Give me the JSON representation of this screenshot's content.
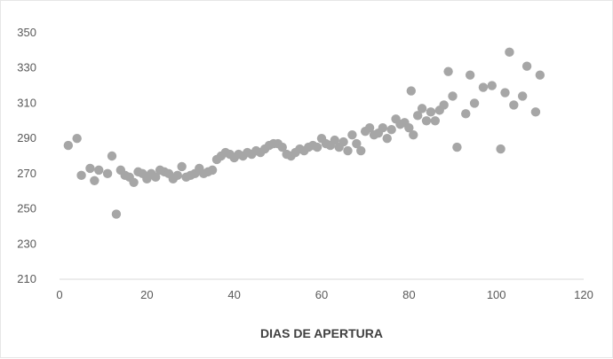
{
  "chart_data": {
    "type": "scatter",
    "title": "",
    "xlabel": "DIAS DE APERTURA",
    "ylabel": "",
    "xlim": [
      0,
      120
    ],
    "ylim": [
      210,
      350
    ],
    "xticks": [
      0,
      20,
      40,
      60,
      80,
      100,
      120
    ],
    "yticks": [
      210,
      230,
      250,
      270,
      290,
      310,
      330,
      350
    ],
    "grid": false,
    "legend": "none",
    "marker_color": "#a6a6a6",
    "series": [
      {
        "points": [
          [
            2,
            286
          ],
          [
            4,
            290
          ],
          [
            5,
            269
          ],
          [
            7,
            273
          ],
          [
            8,
            266
          ],
          [
            9,
            272
          ],
          [
            11,
            270
          ],
          [
            12,
            280
          ],
          [
            13,
            247
          ],
          [
            14,
            272
          ],
          [
            15,
            269
          ],
          [
            16,
            268
          ],
          [
            17,
            265
          ],
          [
            18,
            271
          ],
          [
            19,
            270
          ],
          [
            20,
            267
          ],
          [
            21,
            270
          ],
          [
            22,
            268
          ],
          [
            23,
            272
          ],
          [
            24,
            271
          ],
          [
            25,
            270
          ],
          [
            26,
            267
          ],
          [
            27,
            269
          ],
          [
            28,
            274
          ],
          [
            29,
            268
          ],
          [
            30,
            269
          ],
          [
            31,
            270
          ],
          [
            32,
            273
          ],
          [
            33,
            270
          ],
          [
            34,
            271
          ],
          [
            35,
            272
          ],
          [
            36,
            278
          ],
          [
            37,
            280
          ],
          [
            38,
            282
          ],
          [
            39,
            281
          ],
          [
            40,
            279
          ],
          [
            41,
            281
          ],
          [
            42,
            280
          ],
          [
            43,
            282
          ],
          [
            44,
            281
          ],
          [
            45,
            283
          ],
          [
            46,
            282
          ],
          [
            47,
            284
          ],
          [
            48,
            286
          ],
          [
            49,
            287
          ],
          [
            50,
            287
          ],
          [
            51,
            285
          ],
          [
            52,
            281
          ],
          [
            53,
            280
          ],
          [
            54,
            282
          ],
          [
            55,
            284
          ],
          [
            56,
            283
          ],
          [
            57,
            285
          ],
          [
            58,
            286
          ],
          [
            59,
            285
          ],
          [
            60,
            290
          ],
          [
            61,
            287
          ],
          [
            62,
            286
          ],
          [
            63,
            289
          ],
          [
            64,
            285
          ],
          [
            65,
            288
          ],
          [
            66,
            283
          ],
          [
            67,
            292
          ],
          [
            68,
            287
          ],
          [
            69,
            283
          ],
          [
            70,
            294
          ],
          [
            71,
            296
          ],
          [
            72,
            292
          ],
          [
            73,
            293
          ],
          [
            74,
            296
          ],
          [
            75,
            290
          ],
          [
            76,
            295
          ],
          [
            77,
            301
          ],
          [
            78,
            298
          ],
          [
            79,
            299
          ],
          [
            80,
            296
          ],
          [
            80.5,
            317
          ],
          [
            81,
            292
          ],
          [
            82,
            303
          ],
          [
            83,
            307
          ],
          [
            84,
            300
          ],
          [
            85,
            305
          ],
          [
            86,
            300
          ],
          [
            87,
            306
          ],
          [
            88,
            309
          ],
          [
            89,
            328
          ],
          [
            90,
            314
          ],
          [
            91,
            285
          ],
          [
            93,
            304
          ],
          [
            94,
            326
          ],
          [
            95,
            310
          ],
          [
            97,
            319
          ],
          [
            99,
            320
          ],
          [
            101,
            284
          ],
          [
            102,
            316
          ],
          [
            103,
            339
          ],
          [
            104,
            309
          ],
          [
            106,
            314
          ],
          [
            107,
            331
          ],
          [
            109,
            305
          ],
          [
            110,
            326
          ]
        ]
      }
    ]
  }
}
